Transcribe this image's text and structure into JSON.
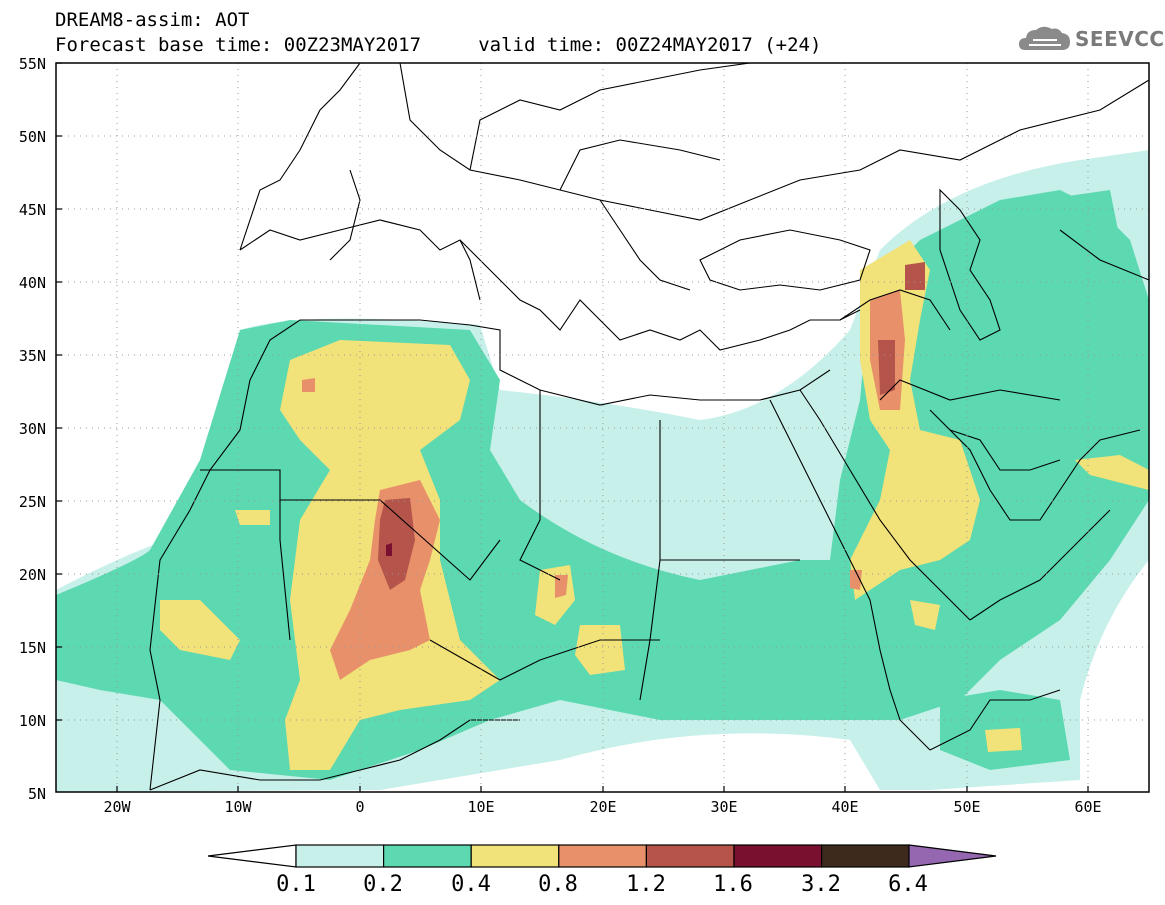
{
  "header": {
    "line1": "DREAM8-assim: AOT",
    "line2": "Forecast base time: 00Z23MAY2017     valid time: 00Z24MAY2017 (+24)",
    "logo_text": "SEEVCCC",
    "logo_icon": "cloud-icon"
  },
  "map": {
    "region": "North Africa, Middle East, Europe",
    "lat_range": [
      "5N",
      "55N"
    ],
    "lon_range": [
      "25W",
      "65E"
    ],
    "lat_labels": [
      "55N",
      "50N",
      "45N",
      "40N",
      "35N",
      "30N",
      "25N",
      "20N",
      "15N",
      "10N",
      "5N"
    ],
    "lon_labels": [
      "20W",
      "10W",
      "0",
      "10E",
      "20E",
      "30E",
      "40E",
      "50E",
      "60E"
    ]
  },
  "colorbar": {
    "labels": [
      "0.1",
      "0.2",
      "0.4",
      "0.8",
      "1.2",
      "1.6",
      "3.2",
      "6.4"
    ],
    "colors": [
      "#c8f0ea",
      "#5cd9b0",
      "#f2e27a",
      "#e8906a",
      "#b4544a",
      "#7a1030",
      "#3e2a1c",
      "#9467b0"
    ]
  }
}
